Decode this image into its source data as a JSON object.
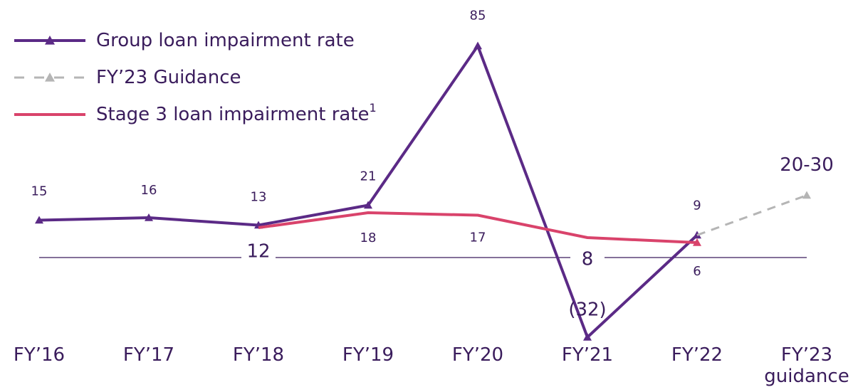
{
  "chart_data": {
    "type": "line",
    "categories": [
      "FY’16",
      "FY’17",
      "FY’18",
      "FY’19",
      "FY’20",
      "FY’21",
      "FY’22",
      "FY’23 guidance"
    ],
    "ylim": [
      -40,
      100
    ],
    "series": [
      {
        "name": "Group loan impairment rate",
        "color": "#5b2a86",
        "style": "solid",
        "marker": "triangle",
        "values": [
          15,
          16,
          13,
          21,
          85,
          -32,
          9,
          null
        ],
        "value_labels": [
          "15",
          "16",
          "13",
          "21",
          "85",
          "(32)",
          "9",
          null
        ]
      },
      {
        "name": "FY’23 Guidance",
        "color": "#b5b5b5",
        "style": "dashed",
        "marker": "triangle",
        "values": [
          null,
          null,
          null,
          null,
          null,
          null,
          9,
          25
        ],
        "value_labels": [
          null,
          null,
          null,
          null,
          null,
          null,
          null,
          "20-30"
        ]
      },
      {
        "name": "Stage 3 loan impairment rate",
        "name_footnote": "1",
        "color": "#d9436b",
        "style": "solid",
        "marker": "end-triangle",
        "values": [
          null,
          null,
          12,
          18,
          17,
          8,
          6,
          null
        ]
      }
    ]
  }
}
